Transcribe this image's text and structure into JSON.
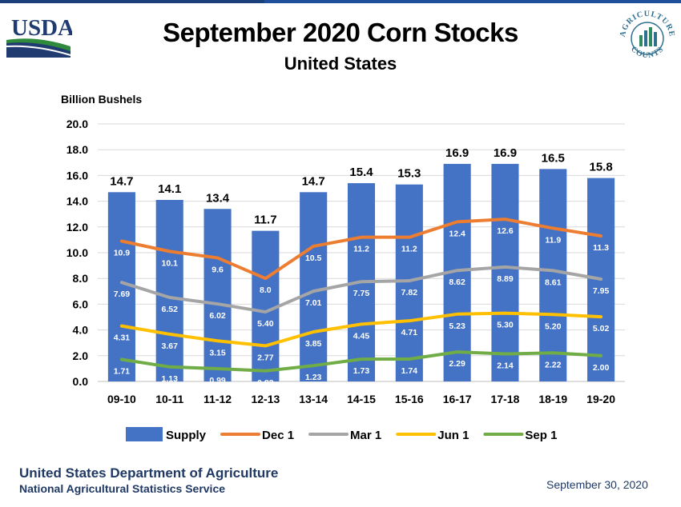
{
  "header": {
    "logo_text": "USDA",
    "badge_top": "AGRICULTURE",
    "badge_bottom": "COUNTS"
  },
  "footer": {
    "organization": "United States Department of Agriculture",
    "agency": "National Agricultural Statistics Service",
    "date": "September 30, 2020"
  },
  "colors": {
    "supply": "#4472c4",
    "dec1": "#ed7d31",
    "mar1": "#a5a5a5",
    "jun1": "#ffc000",
    "sep1": "#70ad47"
  },
  "chart_data": {
    "type": "bar",
    "title": "September 2020 Corn Stocks",
    "subtitle": "United States",
    "ylabel": "Billion Bushels",
    "xlabel": "",
    "ylim": [
      0,
      20
    ],
    "yticks": [
      "0.0",
      "2.0",
      "4.0",
      "6.0",
      "8.0",
      "10.0",
      "12.0",
      "14.0",
      "16.0",
      "18.0",
      "20.0"
    ],
    "grid": true,
    "legend": "bottom",
    "categories": [
      "09-10",
      "10-11",
      "11-12",
      "12-13",
      "13-14",
      "14-15",
      "15-16",
      "16-17",
      "17-18",
      "18-19",
      "19-20"
    ],
    "series": [
      {
        "name": "Supply",
        "kind": "bar",
        "color": "#4472c4",
        "values": [
          14.7,
          14.1,
          13.4,
          11.7,
          14.7,
          15.4,
          15.3,
          16.9,
          16.9,
          16.5,
          15.8
        ],
        "labels": [
          "14.7",
          "14.1",
          "13.4",
          "11.7",
          "14.7",
          "15.4",
          "15.3",
          "16.9",
          "16.9",
          "16.5",
          "15.8"
        ]
      },
      {
        "name": "Dec 1",
        "kind": "line",
        "color": "#ed7d31",
        "values": [
          10.9,
          10.1,
          9.6,
          8.0,
          10.5,
          11.2,
          11.2,
          12.4,
          12.6,
          11.9,
          11.3
        ],
        "labels": [
          "10.9",
          "10.1",
          "9.6",
          "8.0",
          "10.5",
          "11.2",
          "11.2",
          "12.4",
          "12.6",
          "11.9",
          "11.3"
        ]
      },
      {
        "name": "Mar 1",
        "kind": "line",
        "color": "#a5a5a5",
        "values": [
          7.69,
          6.52,
          6.02,
          5.4,
          7.01,
          7.75,
          7.82,
          8.62,
          8.89,
          8.61,
          7.95
        ],
        "labels": [
          "7.69",
          "6.52",
          "6.02",
          "5.40",
          "7.01",
          "7.75",
          "7.82",
          "8.62",
          "8.89",
          "8.61",
          "7.95"
        ]
      },
      {
        "name": "Jun 1",
        "kind": "line",
        "color": "#ffc000",
        "values": [
          4.31,
          3.67,
          3.15,
          2.77,
          3.85,
          4.45,
          4.71,
          5.23,
          5.3,
          5.2,
          5.02
        ],
        "labels": [
          "4.31",
          "3.67",
          "3.15",
          "2.77",
          "3.85",
          "4.45",
          "4.71",
          "5.23",
          "5.30",
          "5.20",
          "5.02"
        ]
      },
      {
        "name": "Sep 1",
        "kind": "line",
        "color": "#70ad47",
        "values": [
          1.71,
          1.13,
          0.99,
          0.82,
          1.23,
          1.73,
          1.74,
          2.29,
          2.14,
          2.22,
          2.0
        ],
        "labels": [
          "1.71",
          "1.13",
          "0.99",
          "0.82",
          "1.23",
          "1.73",
          "1.74",
          "2.29",
          "2.14",
          "2.22",
          "2.00"
        ]
      }
    ]
  }
}
